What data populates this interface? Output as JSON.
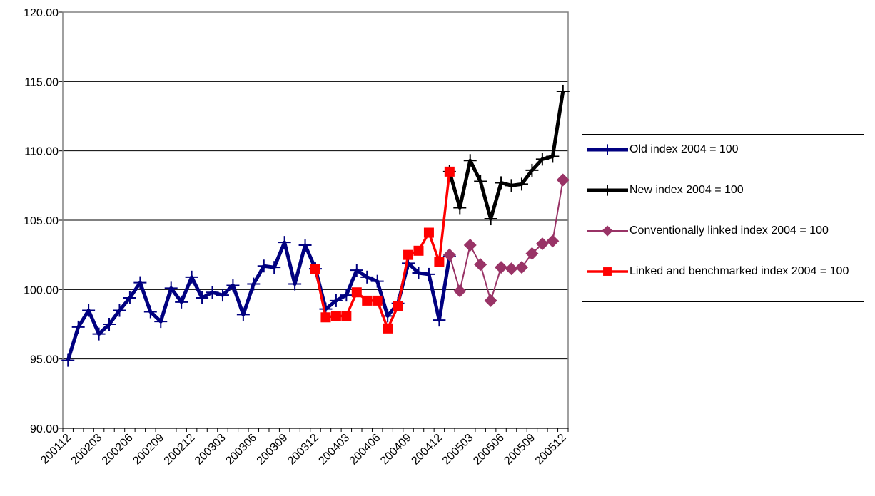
{
  "chart_data": {
    "type": "line",
    "categories": [
      "200112",
      null,
      null,
      "200203",
      null,
      null,
      "200206",
      null,
      null,
      "200209",
      null,
      null,
      "200212",
      null,
      null,
      "200303",
      null,
      null,
      "200306",
      null,
      null,
      "200309",
      null,
      null,
      "200312",
      null,
      null,
      "200403",
      null,
      null,
      "200406",
      null,
      null,
      "200409",
      null,
      null,
      "200412",
      null,
      null,
      "200503",
      null,
      null,
      "200506",
      null,
      null,
      "200509",
      null,
      null,
      "200512"
    ],
    "series": [
      {
        "name": "Old index 2004 = 100",
        "color": "#000080",
        "marker": "plus",
        "line_width": 5,
        "values": [
          94.9,
          97.3,
          98.5,
          96.8,
          97.5,
          98.5,
          99.4,
          100.5,
          98.4,
          97.7,
          100.1,
          99.1,
          100.9,
          99.4,
          99.8,
          99.6,
          100.3,
          98.2,
          100.4,
          101.7,
          101.6,
          103.4,
          100.4,
          103.2,
          101.5,
          98.6,
          99.2,
          99.6,
          101.4,
          100.9,
          100.6,
          98.1,
          99.0,
          101.9,
          101.2,
          101.1,
          97.8,
          102.4,
          null,
          null,
          null,
          null,
          null,
          null,
          null,
          null,
          null,
          null,
          null
        ]
      },
      {
        "name": "New index 2004 = 100",
        "color": "#000000",
        "marker": "plus",
        "line_width": 5,
        "values": [
          null,
          null,
          null,
          null,
          null,
          null,
          null,
          null,
          null,
          null,
          null,
          null,
          null,
          null,
          null,
          null,
          null,
          null,
          null,
          null,
          null,
          null,
          null,
          null,
          null,
          null,
          null,
          null,
          null,
          null,
          null,
          null,
          null,
          null,
          null,
          null,
          null,
          108.5,
          105.9,
          109.3,
          107.8,
          105.1,
          107.7,
          107.5,
          107.6,
          108.6,
          109.4,
          109.6,
          114.3
        ]
      },
      {
        "name": "Conventionally linked index 2004 = 100",
        "color": "#993366",
        "marker": "diamond",
        "line_width": 2,
        "values": [
          null,
          null,
          null,
          null,
          null,
          null,
          null,
          null,
          null,
          null,
          null,
          null,
          null,
          null,
          null,
          null,
          null,
          null,
          null,
          null,
          null,
          null,
          null,
          null,
          null,
          null,
          null,
          null,
          null,
          null,
          null,
          null,
          null,
          null,
          null,
          null,
          null,
          102.5,
          99.9,
          103.2,
          101.8,
          99.2,
          101.6,
          101.5,
          101.6,
          102.6,
          103.3,
          103.5,
          107.9
        ]
      },
      {
        "name": "Linked and benchmarked index 2004 = 100",
        "color": "#ff0000",
        "marker": "square",
        "line_width": 3.5,
        "values": [
          null,
          null,
          null,
          null,
          null,
          null,
          null,
          null,
          null,
          null,
          null,
          null,
          null,
          null,
          null,
          null,
          null,
          null,
          null,
          null,
          null,
          null,
          null,
          null,
          101.5,
          98.0,
          98.1,
          98.1,
          99.8,
          99.2,
          99.2,
          97.2,
          98.8,
          102.5,
          102.8,
          104.1,
          102.0,
          108.5,
          null,
          null,
          null,
          null,
          null,
          null,
          null,
          null,
          null,
          null,
          null
        ]
      }
    ],
    "ylim": [
      90,
      120
    ],
    "yticks": [
      {
        "value": 90,
        "label": "90.00"
      },
      {
        "value": 95,
        "label": "95.00"
      },
      {
        "value": 100,
        "label": "100.00"
      },
      {
        "value": 105,
        "label": "105.00"
      },
      {
        "value": 110,
        "label": "110.00"
      },
      {
        "value": 115,
        "label": "115.00"
      },
      {
        "value": 120,
        "label": "120.00"
      }
    ],
    "grid": true
  }
}
